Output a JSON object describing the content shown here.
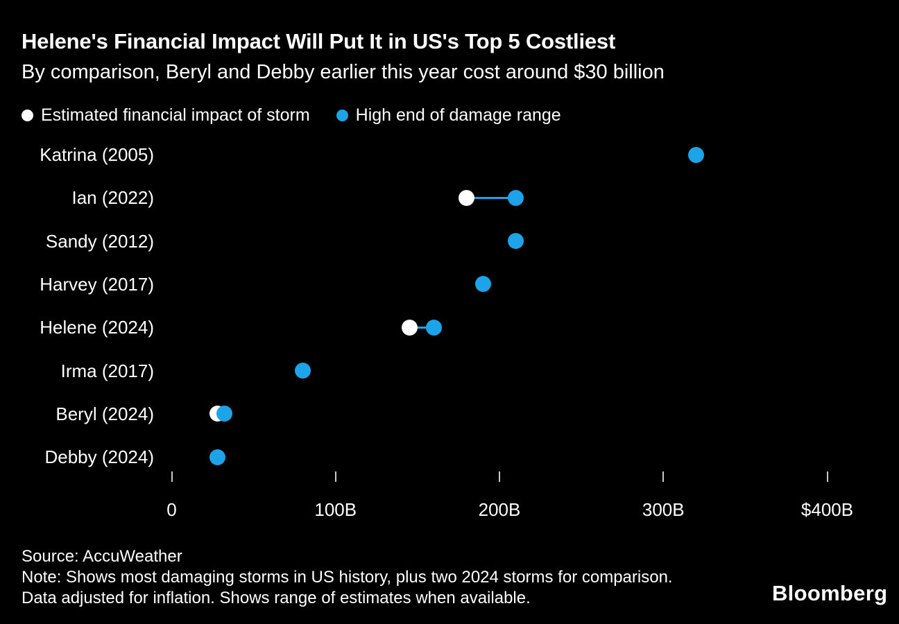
{
  "header": {
    "title": "Helene's Financial Impact Will Put It in US's Top 5 Costliest",
    "subtitle": "By comparison, Beryl and Debby earlier this year cost around $30 billion"
  },
  "colors": {
    "background": "#000000",
    "estimate_dot": "#ffffff",
    "high_dot": "#1da3e8",
    "tick": "#c9c9c9",
    "text": "#ffffff"
  },
  "legend": {
    "items": [
      {
        "label": "Estimated financial impact of storm",
        "color": "#ffffff"
      },
      {
        "label": "High end of damage range",
        "color": "#1da3e8"
      }
    ]
  },
  "chart_data": {
    "type": "scatter",
    "subtype": "horizontal-dot-range",
    "title": "Helene's Financial Impact Will Put It in US's Top 5 Costliest",
    "unit": "USD billions",
    "categories": [
      "Katrina (2005)",
      "Ian (2022)",
      "Sandy (2012)",
      "Harvey (2017)",
      "Helene (2024)",
      "Irma (2017)",
      "Beryl (2024)",
      "Debby (2024)"
    ],
    "series": [
      {
        "name": "Estimated financial impact of storm",
        "color": "#ffffff",
        "values": [
          null,
          180,
          null,
          null,
          145,
          null,
          28,
          null
        ]
      },
      {
        "name": "High end of damage range",
        "color": "#1da3e8",
        "values": [
          320,
          210,
          210,
          190,
          160,
          80,
          32,
          28
        ]
      }
    ],
    "xlabel": "",
    "ylabel": "",
    "xlim": [
      0,
      400
    ],
    "grid": false,
    "legend_position": "top",
    "axis_ticks": [
      {
        "value": 0,
        "label": "0"
      },
      {
        "value": 100,
        "label": "100B"
      },
      {
        "value": 200,
        "label": "200B"
      },
      {
        "value": 300,
        "label": "300B"
      },
      {
        "value": 400,
        "label": "$400B"
      }
    ]
  },
  "footer": {
    "source": "Source: AccuWeather",
    "note": "Note: Shows most damaging storms in US history, plus two 2024 storms for comparison. Data adjusted for inflation. Shows range of estimates when available.",
    "brand": "Bloomberg"
  }
}
